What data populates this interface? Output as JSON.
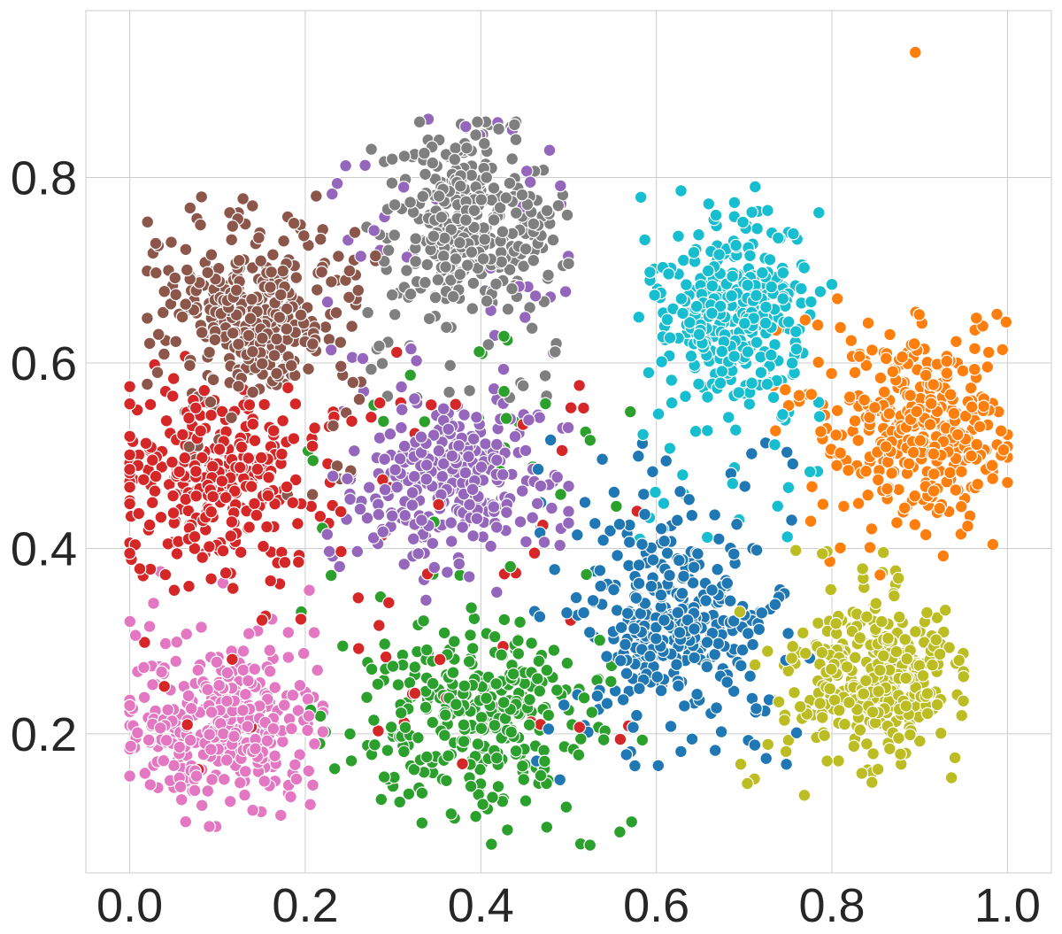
{
  "chart_data": {
    "type": "scatter",
    "title": "",
    "xlabel": "",
    "ylabel": "",
    "xlim": [
      -0.05,
      1.05
    ],
    "ylim": [
      0.05,
      0.98
    ],
    "x_ticks": [
      "0.0",
      "0.2",
      "0.4",
      "0.6",
      "0.8",
      "1.0"
    ],
    "y_ticks": [
      "0.2",
      "0.4",
      "0.6",
      "0.8"
    ],
    "grid": true,
    "legend": "none",
    "marker_edge_color": "#ffffff",
    "series": [
      {
        "color": "#1f77b4",
        "center": [
          0.62,
          0.32
        ],
        "spread": [
          0.065,
          0.07
        ],
        "range_x": [
          0.45,
          0.78
        ],
        "range_y": [
          0.15,
          0.52
        ]
      },
      {
        "color": "#ff7f0e",
        "center": [
          0.9,
          0.53
        ],
        "spread": [
          0.065,
          0.06
        ],
        "range_x": [
          0.72,
          1.0
        ],
        "range_y": [
          0.37,
          0.67
        ]
      },
      {
        "color": "#2ca02c",
        "center": [
          0.4,
          0.22
        ],
        "spread": [
          0.085,
          0.065
        ],
        "range_x": [
          0.18,
          0.6
        ],
        "range_y": [
          0.08,
          0.66
        ]
      },
      {
        "color": "#d62728",
        "center": [
          0.1,
          0.48
        ],
        "spread": [
          0.08,
          0.07
        ],
        "range_x": [
          0.0,
          0.58
        ],
        "range_y": [
          0.16,
          0.62
        ]
      },
      {
        "color": "#9467bd",
        "center": [
          0.36,
          0.47
        ],
        "spread": [
          0.075,
          0.055
        ],
        "range_x": [
          0.22,
          0.5
        ],
        "range_y": [
          0.34,
          0.87
        ]
      },
      {
        "color": "#8c564b",
        "center": [
          0.13,
          0.65
        ],
        "spread": [
          0.07,
          0.065
        ],
        "range_x": [
          0.02,
          0.28
        ],
        "range_y": [
          0.43,
          0.78
        ]
      },
      {
        "color": "#e377c2",
        "center": [
          0.11,
          0.21
        ],
        "spread": [
          0.065,
          0.055
        ],
        "range_x": [
          0.0,
          0.22
        ],
        "range_y": [
          0.1,
          0.38
        ]
      },
      {
        "color": "#7f7f7f",
        "center": [
          0.39,
          0.75
        ],
        "spread": [
          0.06,
          0.06
        ],
        "range_x": [
          0.27,
          0.5
        ],
        "range_y": [
          0.56,
          0.86
        ]
      },
      {
        "color": "#bcbd22",
        "center": [
          0.85,
          0.26
        ],
        "spread": [
          0.06,
          0.05
        ],
        "range_x": [
          0.68,
          0.95
        ],
        "range_y": [
          0.13,
          0.4
        ]
      },
      {
        "color": "#17becf",
        "center": [
          0.69,
          0.65
        ],
        "spread": [
          0.055,
          0.065
        ],
        "range_x": [
          0.58,
          0.8
        ],
        "range_y": [
          0.4,
          0.79
        ]
      }
    ],
    "outliers": [
      {
        "color": "#ff7f0e",
        "x": 0.895,
        "y": 0.935
      }
    ]
  }
}
